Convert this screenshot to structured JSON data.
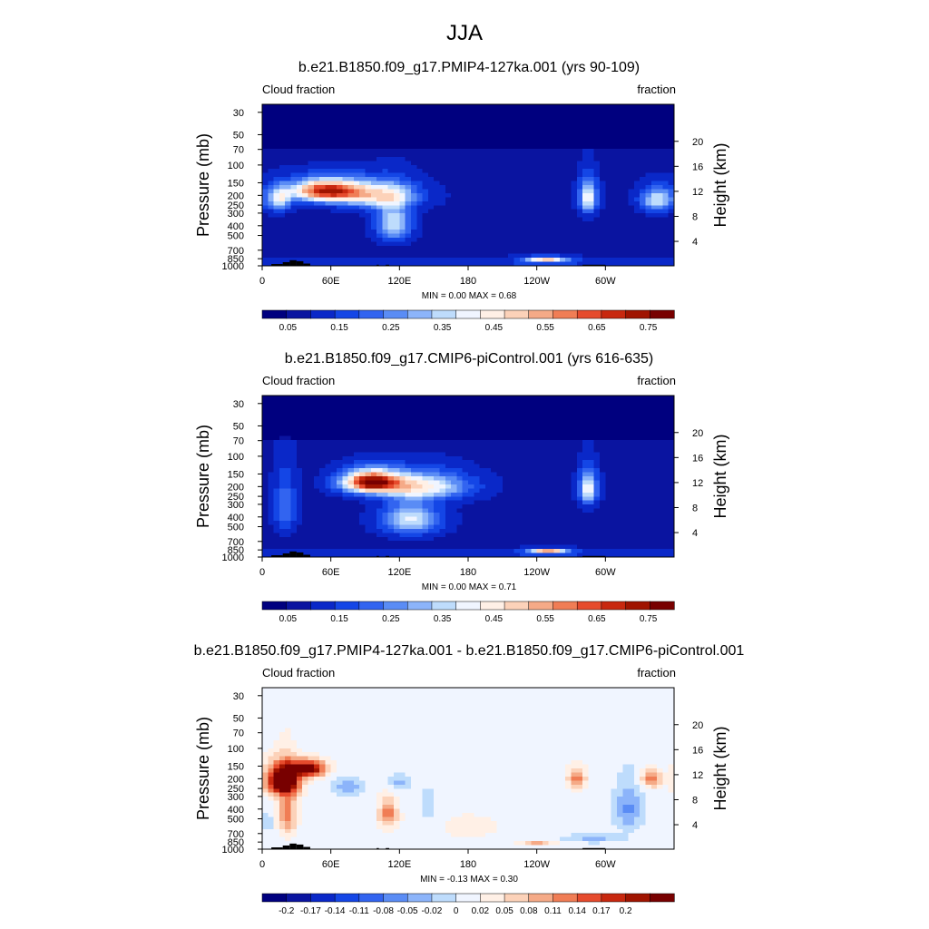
{
  "page_title": "JJA",
  "chart_data": [
    {
      "type": "heatmap",
      "title": "b.e21.B1850.f09_g17.PMIP4-127ka.001 (yrs 90-109)",
      "left_label": "Cloud fraction",
      "right_label": "fraction",
      "ylabel": "Pressure (mb)",
      "y2label": "Height (km)",
      "x_ticks": [
        "0",
        "60E",
        "120E",
        "180",
        "120W",
        "60W"
      ],
      "y_ticks": [
        "30",
        "50",
        "70",
        "100",
        "150",
        "200",
        "250",
        "300",
        "400",
        "500",
        "700",
        "850",
        "1000"
      ],
      "y2_ticks": [
        "20",
        "16",
        "12",
        "8",
        "4"
      ],
      "stats": "MIN =   0.00  MAX =   0.68",
      "min": 0.0,
      "max": 0.68,
      "colorbar_labels": [
        "0.05",
        "0.15",
        "0.25",
        "0.35",
        "0.45",
        "0.55",
        "0.65",
        "0.75"
      ],
      "colorbar_colors": [
        "#00007f",
        "#0a14a0",
        "#0a28c8",
        "#1446e6",
        "#3264f0",
        "#5a8cf5",
        "#8cb4fa",
        "#bedcfc",
        "#f0f5ff",
        "#fff0e6",
        "#fcd2b9",
        "#f5aa87",
        "#f07d55",
        "#e64b2d",
        "#c8280f",
        "#a01400",
        "#780000"
      ],
      "fields": [
        {
          "lon": 55,
          "p": 180,
          "slon": 30,
          "sp": 45,
          "amp": 0.6
        },
        {
          "lon": 100,
          "p": 200,
          "slon": 35,
          "sp": 60,
          "amp": 0.35
        },
        {
          "lon": 115,
          "p": 380,
          "slon": 15,
          "sp": 160,
          "amp": 0.3
        },
        {
          "lon": 15,
          "p": 220,
          "slon": 10,
          "sp": 60,
          "amp": 0.3
        },
        {
          "lon": 285,
          "p": 210,
          "slon": 8,
          "sp": 80,
          "amp": 0.35
        },
        {
          "lon": 248,
          "p": 860,
          "slon": 18,
          "sp": 50,
          "amp": 0.4
        },
        {
          "lon": 345,
          "p": 220,
          "slon": 14,
          "sp": 60,
          "amp": 0.3
        }
      ]
    },
    {
      "type": "heatmap",
      "title": "b.e21.B1850.f09_g17.CMIP6-piControl.001 (yrs 616-635)",
      "left_label": "Cloud fraction",
      "right_label": "fraction",
      "ylabel": "Pressure (mb)",
      "y2label": "Height (km)",
      "x_ticks": [
        "0",
        "60E",
        "120E",
        "180",
        "120W",
        "60W"
      ],
      "y_ticks": [
        "30",
        "50",
        "70",
        "100",
        "150",
        "200",
        "250",
        "300",
        "400",
        "500",
        "700",
        "850",
        "1000"
      ],
      "y2_ticks": [
        "20",
        "16",
        "12",
        "8",
        "4"
      ],
      "stats": "MIN =   0.00  MAX =   0.71",
      "min": 0.0,
      "max": 0.71,
      "colorbar_labels": [
        "0.05",
        "0.15",
        "0.25",
        "0.35",
        "0.45",
        "0.55",
        "0.65",
        "0.75"
      ],
      "colorbar_colors": [
        "#00007f",
        "#0a14a0",
        "#0a28c8",
        "#1446e6",
        "#3264f0",
        "#5a8cf5",
        "#8cb4fa",
        "#bedcfc",
        "#f0f5ff",
        "#fff0e6",
        "#fcd2b9",
        "#f5aa87",
        "#f07d55",
        "#e64b2d",
        "#c8280f",
        "#a01400",
        "#780000"
      ],
      "fields": [
        {
          "lon": 95,
          "p": 180,
          "slon": 25,
          "sp": 45,
          "amp": 0.65
        },
        {
          "lon": 140,
          "p": 200,
          "slon": 40,
          "sp": 60,
          "amp": 0.35
        },
        {
          "lon": 130,
          "p": 420,
          "slon": 25,
          "sp": 150,
          "amp": 0.3
        },
        {
          "lon": 285,
          "p": 210,
          "slon": 8,
          "sp": 80,
          "amp": 0.35
        },
        {
          "lon": 250,
          "p": 870,
          "slon": 16,
          "sp": 45,
          "amp": 0.45
        },
        {
          "lon": 20,
          "p": 320,
          "slon": 10,
          "sp": 200,
          "amp": 0.15
        }
      ]
    },
    {
      "type": "heatmap",
      "title": "b.e21.B1850.f09_g17.PMIP4-127ka.001 - b.e21.B1850.f09_g17.CMIP6-piControl.001",
      "left_label": "Cloud fraction",
      "right_label": "fraction",
      "ylabel": "Pressure (mb)",
      "y2label": "Height (km)",
      "x_ticks": [
        "0",
        "60E",
        "120E",
        "180",
        "120W",
        "60W"
      ],
      "y_ticks": [
        "30",
        "50",
        "70",
        "100",
        "150",
        "200",
        "250",
        "300",
        "400",
        "500",
        "700",
        "850",
        "1000"
      ],
      "y2_ticks": [
        "20",
        "16",
        "12",
        "8",
        "4"
      ],
      "stats": "MIN =  -0.13  MAX =   0.30",
      "min": -0.13,
      "max": 0.3,
      "colorbar_labels": [
        "-0.2",
        "-0.17",
        "-0.14",
        "-0.11",
        "-0.08",
        "-0.05",
        "-0.02",
        "0",
        "0.02",
        "0.05",
        "0.08",
        "0.11",
        "0.14",
        "0.17",
        "0.2"
      ],
      "colorbar_colors": [
        "#00007f",
        "#0a14a0",
        "#0a28c8",
        "#1446e6",
        "#3264f0",
        "#5a8cf5",
        "#8cb4fa",
        "#bedcfc",
        "#f0f5ff",
        "#fff0e6",
        "#fcd2b9",
        "#f5aa87",
        "#f07d55",
        "#e64b2d",
        "#c8280f",
        "#a01400",
        "#780000"
      ],
      "fields": [
        {
          "lon": 18,
          "p": 210,
          "slon": 14,
          "sp": 70,
          "amp": 0.28
        },
        {
          "lon": 40,
          "p": 160,
          "slon": 15,
          "sp": 30,
          "amp": 0.22
        },
        {
          "lon": 22,
          "p": 450,
          "slon": 8,
          "sp": 250,
          "amp": 0.1
        },
        {
          "lon": 110,
          "p": 450,
          "slon": 8,
          "sp": 150,
          "amp": 0.1
        },
        {
          "lon": 120,
          "p": 220,
          "slon": 10,
          "sp": 40,
          "amp": -0.05
        },
        {
          "lon": 75,
          "p": 250,
          "slon": 12,
          "sp": 50,
          "amp": -0.06
        },
        {
          "lon": 275,
          "p": 200,
          "slon": 8,
          "sp": 50,
          "amp": 0.1
        },
        {
          "lon": 340,
          "p": 200,
          "slon": 8,
          "sp": 40,
          "amp": 0.12
        },
        {
          "lon": 320,
          "p": 400,
          "slon": 12,
          "sp": 200,
          "amp": -0.07
        },
        {
          "lon": 290,
          "p": 780,
          "slon": 25,
          "sp": 80,
          "amp": -0.05
        },
        {
          "lon": 240,
          "p": 880,
          "slon": 15,
          "sp": 40,
          "amp": 0.07
        },
        {
          "lon": 180,
          "p": 600,
          "slon": 60,
          "sp": 350,
          "amp": 0.015
        },
        {
          "lon": 145,
          "p": 400,
          "slon": 10,
          "sp": 200,
          "amp": -0.03
        },
        {
          "lon": 5,
          "p": 550,
          "slon": 5,
          "sp": 100,
          "amp": -0.04
        }
      ]
    }
  ]
}
